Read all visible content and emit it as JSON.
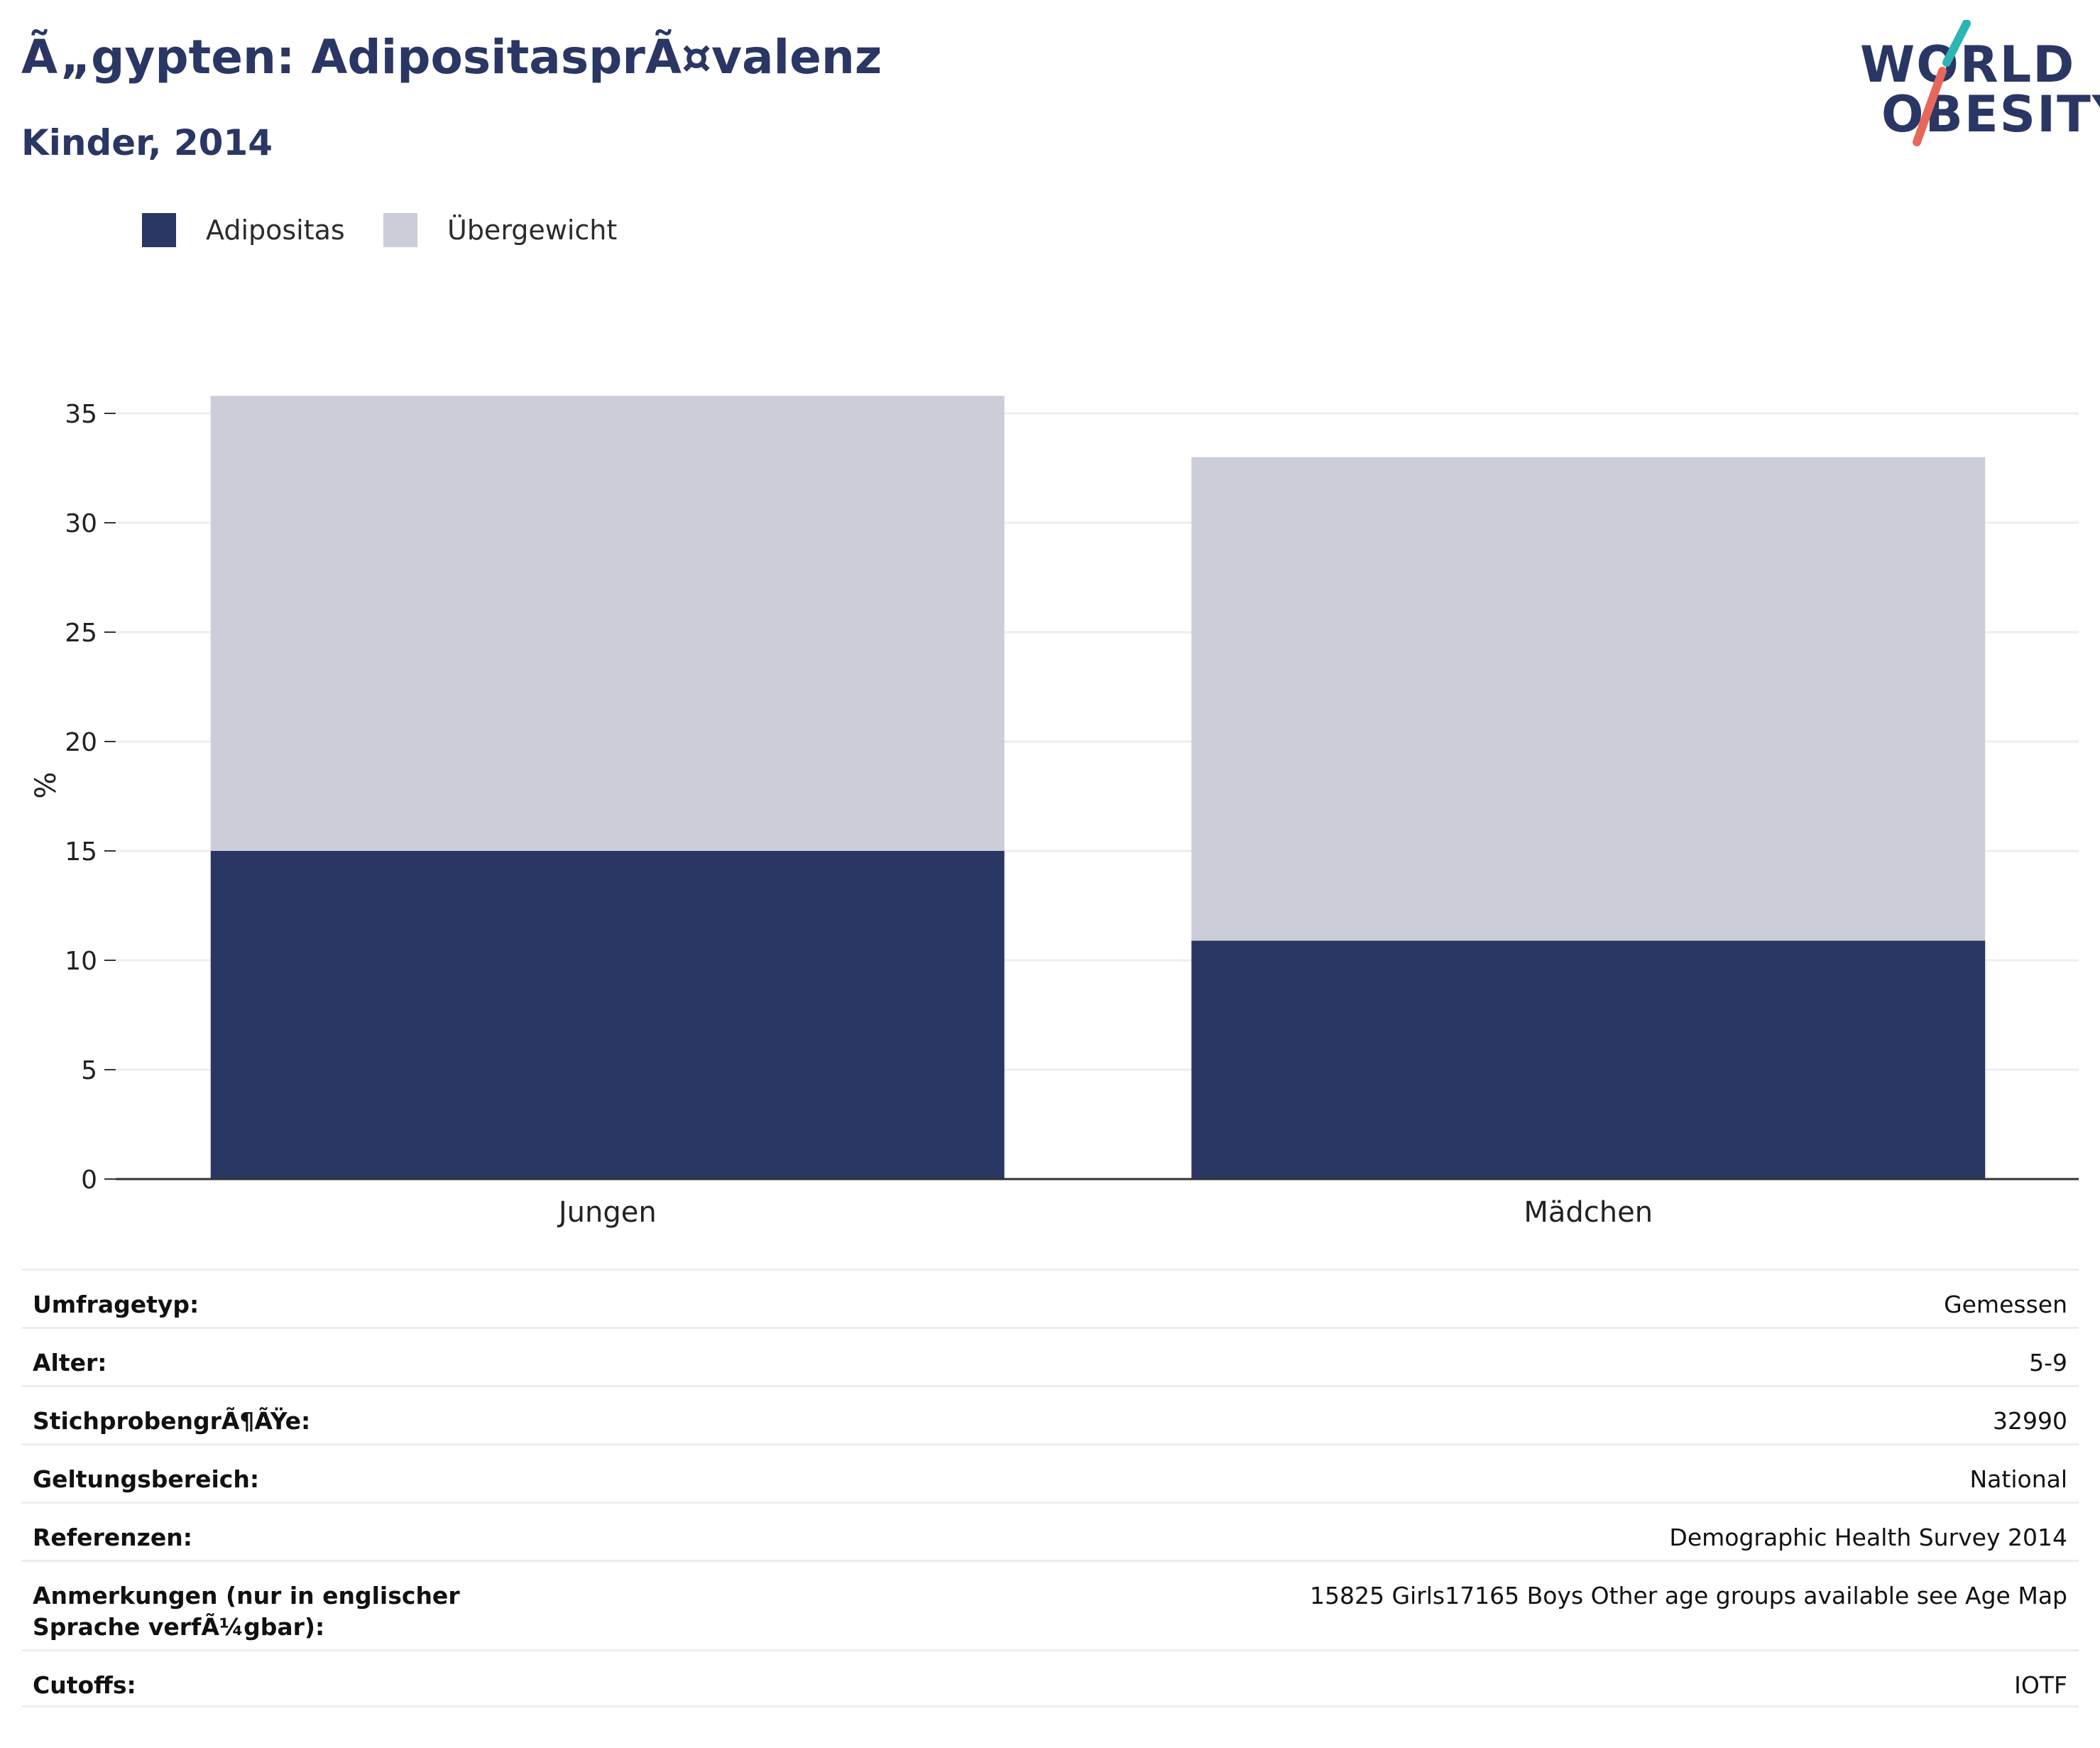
{
  "header": {
    "title": "Ã„gypten: AdipositasprÃ¤valenz",
    "subtitle": "Kinder, 2014"
  },
  "logo": {
    "line1": "WORLD",
    "line2": "OBESITY",
    "accent_teal": "#2bb5b5",
    "accent_red": "#e8675b"
  },
  "legend": [
    {
      "label": "Adipositas",
      "color": "#2a3663"
    },
    {
      "label": "Übergewicht",
      "color": "#cbcdd8"
    }
  ],
  "chart_data": {
    "type": "bar",
    "stacked": true,
    "categories": [
      "Jungen",
      "Mädchen"
    ],
    "series": [
      {
        "name": "Adipositas",
        "values": [
          15.0,
          10.9
        ],
        "color": "#2a3663"
      },
      {
        "name": "Übergewicht",
        "values": [
          20.8,
          22.1
        ],
        "color": "#cbcdd8"
      }
    ],
    "ylabel": "%",
    "ylim": [
      0,
      36
    ],
    "yticks": [
      0,
      5,
      10,
      15,
      20,
      25,
      30,
      35
    ],
    "grid": true,
    "legend_position": "top-left"
  },
  "details": [
    {
      "label": "Umfragetyp:",
      "value": "Gemessen"
    },
    {
      "label": "Alter:",
      "value": "5-9"
    },
    {
      "label": "StichprobengrÃ¶ÃŸe:",
      "value": "32990"
    },
    {
      "label": "Geltungsbereich:",
      "value": "National"
    },
    {
      "label": "Referenzen:",
      "value": "Demographic Health Survey 2014"
    },
    {
      "label": "Anmerkungen (nur in englischer Sprache verfÃ¼gbar):",
      "value": "15825 Girls17165 Boys Other age groups available see Age Map"
    },
    {
      "label": "Cutoffs:",
      "value": "IOTF"
    }
  ]
}
